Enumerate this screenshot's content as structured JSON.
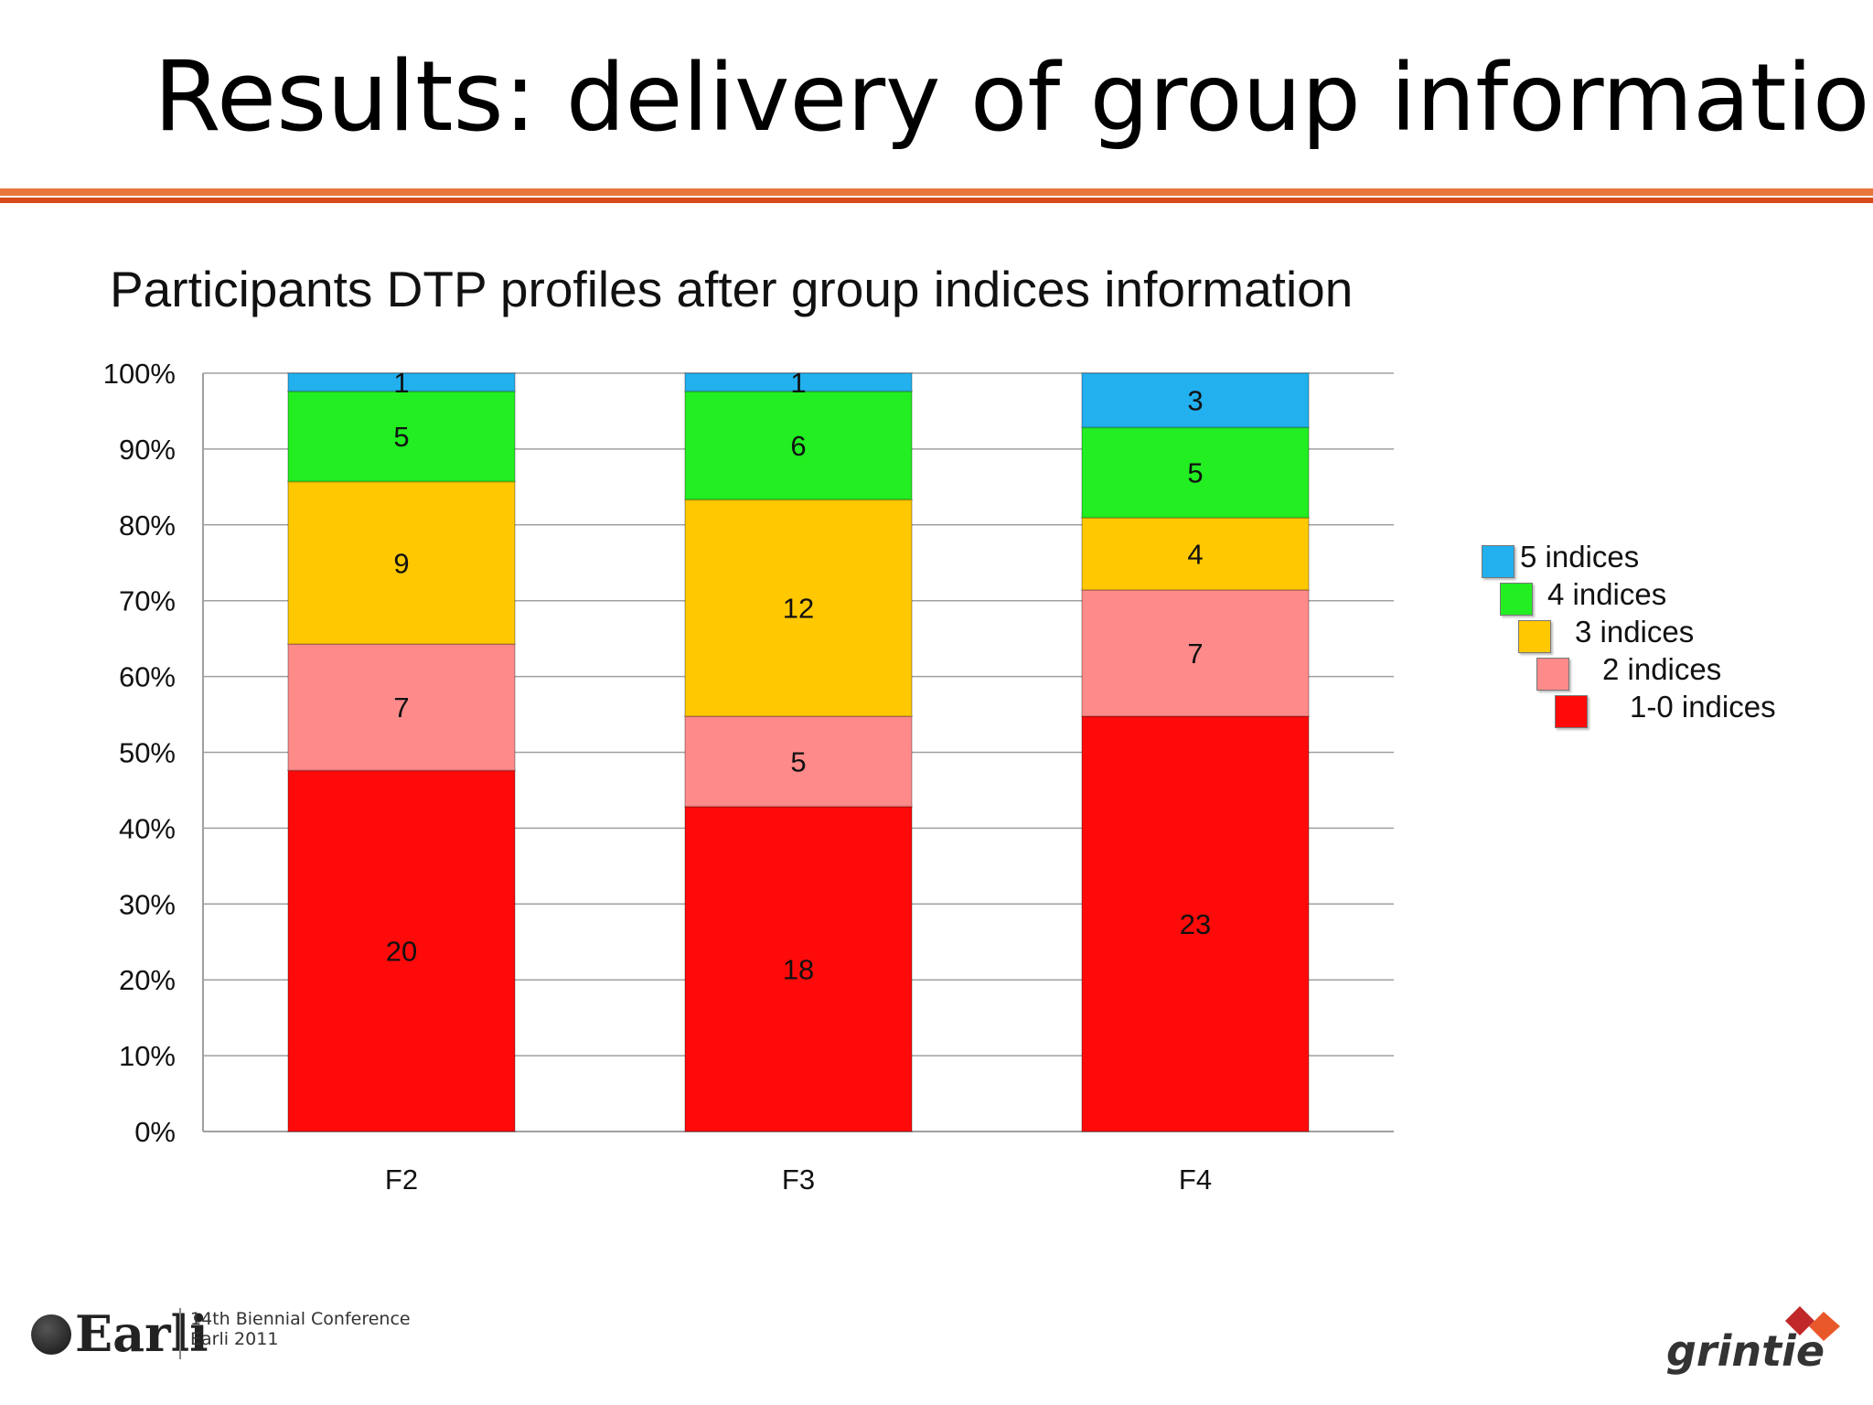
{
  "slide": {
    "title_lead": "Results:",
    "title_rest": "delivery of group information"
  },
  "footer": {
    "logo_text": "Earli",
    "conference_line1": "14th Biennial Conference",
    "conference_line2": "Earli 2011",
    "brand": "grintie"
  },
  "colors": {
    "rule_top": "#e8763a",
    "rule_bottom": "#d84a1a",
    "grid": "#a0a0a0"
  },
  "chart_data": {
    "type": "bar",
    "stacked": true,
    "normalized_percent": true,
    "title": "Participants DTP profiles after group indices information",
    "categories": [
      "F2",
      "F3",
      "F4"
    ],
    "y_tick_labels": [
      "0%",
      "10%",
      "20%",
      "30%",
      "40%",
      "50%",
      "60%",
      "70%",
      "80%",
      "90%",
      "100%"
    ],
    "ylim": [
      0,
      100
    ],
    "grid": true,
    "legend_position": "right",
    "series": [
      {
        "name": "1-0 indices",
        "color": "#ff0a0a",
        "values": [
          20,
          18,
          23
        ]
      },
      {
        "name": "2 indices",
        "color": "#ff8a8a",
        "values": [
          7,
          5,
          7
        ]
      },
      {
        "name": "3 indices",
        "color": "#ffc800",
        "values": [
          9,
          12,
          4
        ]
      },
      {
        "name": "4 indices",
        "color": "#22ee22",
        "values": [
          5,
          6,
          5
        ]
      },
      {
        "name": "5 indices",
        "color": "#22b0ee",
        "values": [
          1,
          1,
          3
        ]
      }
    ]
  }
}
